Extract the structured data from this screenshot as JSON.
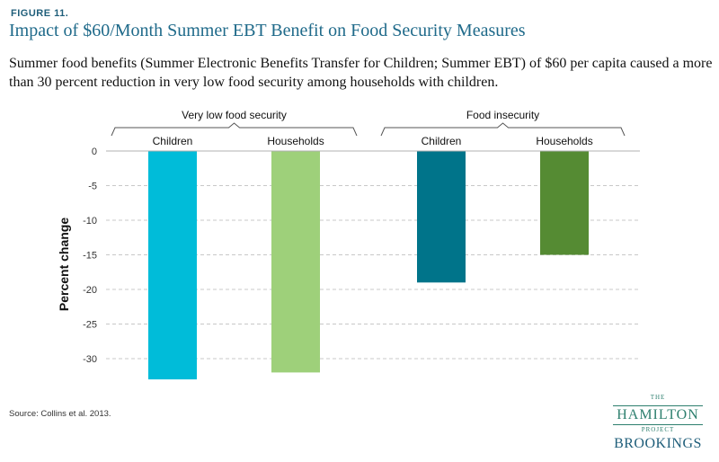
{
  "figure_label": "FIGURE 11.",
  "title": "Impact of $60/Month Summer EBT Benefit on Food Security Measures",
  "subtitle": "Summer food benefits (Summer Electronic Benefits Transfer for Children; Summer EBT) of $60 per capita caused a more than 30 percent reduction in very low food security among households with children.",
  "source": "Source: Collins et al. 2013.",
  "logo": {
    "the": "THE",
    "hamilton": "HAMILTON",
    "project": "PROJECT",
    "brookings": "BROOKINGS"
  },
  "chart_data": {
    "type": "bar",
    "ylabel": "Percent change",
    "ylim": [
      -35,
      0
    ],
    "yticks": [
      0,
      -5,
      -10,
      -15,
      -20,
      -25,
      -30
    ],
    "grid": true,
    "groups": [
      {
        "name": "Very low food security",
        "categories": [
          "Children",
          "Households"
        ]
      },
      {
        "name": "Food insecurity",
        "categories": [
          "Children",
          "Households"
        ]
      }
    ],
    "bars": [
      {
        "group": "Very low food security",
        "category": "Children",
        "value": -33,
        "color": "#00bcd9"
      },
      {
        "group": "Very low food security",
        "category": "Households",
        "value": -32,
        "color": "#9ed07a"
      },
      {
        "group": "Food insecurity",
        "category": "Children",
        "value": -19,
        "color": "#00748a"
      },
      {
        "group": "Food insecurity",
        "category": "Households",
        "value": -15,
        "color": "#558b33"
      }
    ]
  }
}
